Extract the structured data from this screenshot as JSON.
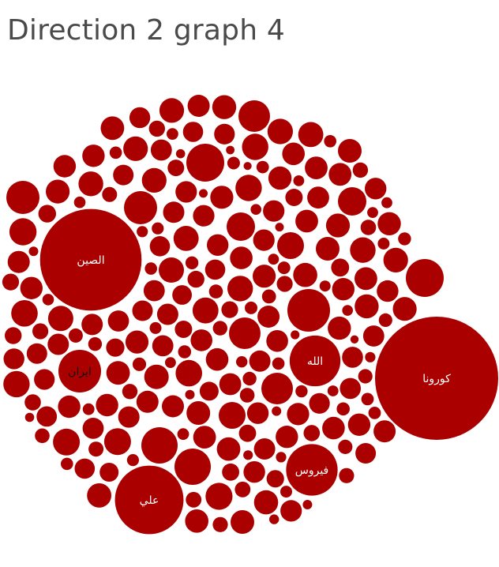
{
  "chart_data": {
    "type": "packed-bubble",
    "title": "Direction 2 graph 4",
    "bubble_color": "#ab0000",
    "background_color": "#ffffff",
    "label_color": "#ffffff",
    "label_dark_color": "#111111",
    "labeled_bubbles": [
      {
        "label": "كورونا",
        "value": 100
      },
      {
        "label": "الصين",
        "value": 68
      },
      {
        "label": "علي",
        "value": 31
      },
      {
        "label": "فيروس",
        "value": 17.5
      },
      {
        "label": "الله",
        "value": 17
      },
      {
        "label": "ايران",
        "value": 12
      }
    ],
    "unlabeled_bubble_count": "many"
  }
}
